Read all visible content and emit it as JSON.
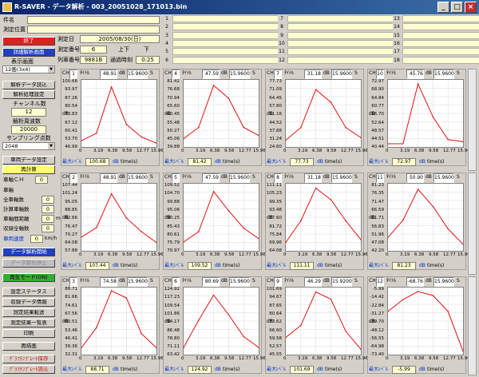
{
  "window": {
    "title": "R-SAVER - データ解析 - 003_20051028_171013.bin",
    "min_label": "_",
    "max_label": "□",
    "close_label": "×"
  },
  "header": {
    "name_label": "件名",
    "location_label": "測定位置",
    "date_label": "測定日",
    "date_value": "2005/08/30(日)",
    "meas_no_label": "測定番号",
    "meas_no_value": "6",
    "updown_label": "上下",
    "down_label": "下",
    "train_no_label": "列車番号",
    "train_no_value": "9881B",
    "passtime_label": "通過時刻",
    "passtime_value": "0:25",
    "channels": [
      "1",
      "2",
      "3",
      "4",
      "5",
      "6",
      "7",
      "8",
      "9",
      "10",
      "11",
      "12",
      "13",
      "14",
      "15",
      "16",
      "17",
      "18"
    ]
  },
  "sidebar": {
    "end_btn": "終了",
    "detail_btn": "詳細解析画面",
    "display_label": "表示画面",
    "display_value": "12画(3x4)",
    "read_btn": "解析データ読込",
    "settings_btn": "解析処理設定",
    "ch_count_label": "チャンネル数",
    "ch_count_value": "12",
    "freq_label": "解析周波数",
    "freq_value": "20000",
    "sampling_label": "サンプリング点数",
    "sampling_value": "2048",
    "vehicle_settings_btn": "車両データ設定",
    "recalc_btn": "再計算",
    "vehicle_ch_label": "車軸ＣＨ",
    "vehicle_ch_value": "0",
    "axle_label": "車軸",
    "total_axles_label": "全車軸数",
    "total_axles_value": "0",
    "calc_axles_label": "計算車軸数",
    "calc_axles_value": "0",
    "distance_label": "車軸間距離",
    "distance_value": "0",
    "distance_unit": "m",
    "recorded_label": "収録全軸数",
    "recorded_value": "0",
    "speed_label": "車両速度",
    "speed_value": "0",
    "speed_unit": "km/h",
    "analysis_start_btn": "データ解析開始",
    "analysis_stop_btn": "データ解析停止",
    "playback_btn": "再生モード(ON)",
    "status_btn": "設定ステータス",
    "record_info_btn": "収録データ情報",
    "result_transfer_btn": "測定結果転送",
    "result_list_btn": "測定結果一覧表",
    "print_btn": "印刷",
    "redraw_btn": "再描画",
    "graph_save_btn": "ｸﾞﾗﾌﾃﾝﾌﾟﾚｰﾄ保存",
    "graph_load_btn": "ｸﾞﾗﾌﾃﾝﾌﾟﾚｰﾄ読込"
  },
  "panels": [
    {
      "ch": "1",
      "channel_name": "ﾀｲﾄﾙ",
      "db": "48.91",
      "sec": "15.9600",
      "unit": "S",
      "max_label": "最大ﾚﾍﾞﾙ",
      "max": "100.68",
      "xlabel": "time(s)",
      "ylabel": "dB",
      "yticks": [
        "100.68",
        "93.97",
        "87.26",
        "80.54",
        "73.83",
        "67.12",
        "60.41",
        "53.70",
        "46.99"
      ],
      "xticks": [
        "0",
        "3.19",
        "6.38",
        "9.58",
        "12.77",
        "15.96"
      ]
    },
    {
      "ch": "4",
      "channel_name": "ﾀｲﾄﾙ",
      "db": "47.59",
      "sec": "15.9600",
      "unit": "S",
      "max_label": "最大ﾚﾍﾞﾙ",
      "max": "81.42",
      "xlabel": "time(s)",
      "ylabel": "dB",
      "yticks": [
        "81.42",
        "76.68",
        "70.94",
        "65.60",
        "60.45",
        "55.48",
        "50.27",
        "45.06",
        "39.88"
      ],
      "xticks": [
        "0",
        "3.19",
        "6.38",
        "9.58",
        "12.77",
        "15.96"
      ]
    },
    {
      "ch": "7",
      "channel_name": "ﾀｲﾄﾙ",
      "db": "31.18",
      "sec": "15.9600",
      "unit": "S",
      "max_label": "最大ﾚﾍﾞﾙ",
      "max": "77.73",
      "xlabel": "time(s)",
      "ylabel": "dB",
      "yticks": [
        "77.73",
        "71.09",
        "64.45",
        "57.80",
        "51.16",
        "44.52",
        "37.88",
        "31.24",
        "24.60"
      ],
      "xticks": [
        "0",
        "3.19",
        "6.38",
        "9.58",
        "12.77",
        "15.96"
      ]
    },
    {
      "ch": "10",
      "channel_name": "ﾀｲﾄﾙ",
      "db": "45.76",
      "sec": "15.9600",
      "unit": "S",
      "max_label": "最大ﾚﾍﾞﾙ",
      "max": "72.97",
      "xlabel": "time(s)",
      "ylabel": "dB",
      "yticks": [
        "72.97",
        "68.90",
        "64.84",
        "60.77",
        "56.70",
        "52.64",
        "48.57",
        "44.51",
        "40.44"
      ],
      "xticks": [
        "0",
        "3.19",
        "6.38",
        "9.58",
        "12.77",
        "15.96"
      ]
    },
    {
      "ch": "2",
      "channel_name": "ﾀｲﾄﾙ",
      "db": "48.91",
      "sec": "15.9600",
      "unit": "S",
      "max_label": "最大ﾚﾍﾞﾙ",
      "max": "107.44",
      "xlabel": "time(s)",
      "ylabel": "dB",
      "yticks": [
        "107.44",
        "101.24",
        "95.05",
        "88.85",
        "82.66",
        "76.47",
        "70.27",
        "64.08",
        "57.88"
      ],
      "xticks": [
        "0",
        "3.19",
        "6.38",
        "9.58",
        "12.77",
        "15.96"
      ]
    },
    {
      "ch": "5",
      "channel_name": "ﾀｲﾄﾙ",
      "db": "47.59",
      "sec": "15.9600",
      "unit": "S",
      "max_label": "最大ﾚﾍﾞﾙ",
      "max": "109.52",
      "xlabel": "time(s)",
      "ylabel": "dB",
      "yticks": [
        "109.52",
        "104.70",
        "99.88",
        "95.06",
        "90.25",
        "85.43",
        "80.61",
        "75.79",
        "70.97"
      ],
      "xticks": [
        "0",
        "3.19",
        "6.38",
        "9.58",
        "12.77",
        "15.96"
      ]
    },
    {
      "ch": "8",
      "channel_name": "ﾀｲﾄﾙ",
      "db": "31.18",
      "sec": "15.9600",
      "unit": "S",
      "max_label": "最大ﾚﾍﾞﾙ",
      "max": "111.11",
      "xlabel": "time(s)",
      "ylabel": "dB",
      "yticks": [
        "111.11",
        "105.23",
        "99.35",
        "93.48",
        "87.60",
        "81.72",
        "75.84",
        "69.96",
        "64.08"
      ],
      "xticks": [
        "0",
        "3.19",
        "6.38",
        "9.58",
        "12.77",
        "15.96"
      ]
    },
    {
      "ch": "11",
      "channel_name": "ﾀｲﾄﾙ",
      "db": "50.90",
      "sec": "15.9600",
      "unit": "S",
      "max_label": "最大ﾚﾍﾞﾙ",
      "max": "81.23",
      "xlabel": "time(s)",
      "ylabel": "dB",
      "yticks": [
        "81.23",
        "76.35",
        "71.47",
        "66.59",
        "61.71",
        "56.83",
        "51.96",
        "47.08",
        "42.20"
      ],
      "xticks": [
        "0",
        "3.19",
        "6.38",
        "9.58",
        "12.77",
        "15.96"
      ]
    },
    {
      "ch": "3",
      "channel_name": "ﾀｲﾄﾙ",
      "db": "74.58",
      "sec": "15.9600",
      "unit": "S",
      "max_label": "最大ﾚﾍﾞﾙ",
      "max": "88.71",
      "xlabel": "time(s)",
      "ylabel": "dB",
      "yticks": [
        "88.71",
        "81.66",
        "74.61",
        "67.56",
        "60.51",
        "53.46",
        "46.41",
        "39.36",
        "32.31"
      ],
      "xticks": [
        "0",
        "3.19",
        "6.38",
        "9.58",
        "12.77",
        "15.96"
      ]
    },
    {
      "ch": "6",
      "channel_name": "ﾀｲﾄﾙ",
      "db": "80.69",
      "sec": "15.9600",
      "unit": "S",
      "max_label": "最大ﾚﾍﾞﾙ",
      "max": "124.92",
      "xlabel": "time(s)",
      "ylabel": "dB",
      "yticks": [
        "124.92",
        "117.23",
        "109.54",
        "101.86",
        "94.17",
        "86.48",
        "78.80",
        "71.11",
        "63.42"
      ],
      "xticks": [
        "0",
        "3.19",
        "6.38",
        "9.58",
        "12.77",
        "15.96"
      ]
    },
    {
      "ch": "9",
      "channel_name": "ﾀｲﾄﾙ",
      "db": "46.29",
      "sec": "15.9200",
      "unit": "S",
      "max_label": "最大ﾚﾍﾞﾙ",
      "max": "101.69",
      "xlabel": "time(s)",
      "ylabel": "dB",
      "yticks": [
        "101.69",
        "94.67",
        "87.65",
        "80.64",
        "73.62",
        "66.60",
        "59.58",
        "52.57",
        "45.55"
      ],
      "xticks": [
        "0",
        "3.19",
        "6.38",
        "9.58",
        "12.77",
        "15.96"
      ]
    },
    {
      "ch": "12",
      "channel_name": "ﾀｲﾄﾙ",
      "db": "-68.76",
      "sec": "15.9600",
      "unit": "S",
      "max_label": "最大ﾚﾍﾞﾙ",
      "max": "-5.99",
      "xlabel": "time(s)",
      "ylabel": "dB",
      "yticks": [
        "-5.99",
        "-14.42",
        "-22.84",
        "-31.27",
        "-39.70",
        "-48.12",
        "-56.55",
        "-64.98",
        "-73.40"
      ],
      "xticks": [
        "0",
        "3.19",
        "6.38",
        "9.58",
        "12.77",
        "15.96"
      ]
    }
  ],
  "chart_data": [
    {
      "type": "line",
      "ch": "1",
      "x": [
        0,
        3.19,
        6.38,
        9.58,
        12.77,
        15.96
      ],
      "xlabel": "time(s)",
      "ylabel": "dB",
      "ylim": [
        46.99,
        100.68
      ],
      "series": [
        {
          "values": [
            52,
            58,
            95,
            65,
            55,
            50
          ]
        }
      ]
    },
    {
      "type": "line",
      "ch": "4",
      "x": [
        0,
        3.19,
        6.38,
        9.58,
        12.77,
        15.96
      ],
      "xlabel": "time(s)",
      "ylabel": "dB",
      "ylim": [
        39.88,
        81.42
      ],
      "series": [
        {
          "values": [
            45,
            52,
            78,
            70,
            52,
            47
          ]
        }
      ]
    },
    {
      "type": "line",
      "ch": "7",
      "x": [
        0,
        3.19,
        6.38,
        9.58,
        12.77,
        15.96
      ],
      "xlabel": "time(s)",
      "ylabel": "dB",
      "ylim": [
        24.6,
        77.73
      ],
      "series": [
        {
          "values": [
            30,
            40,
            70,
            60,
            40,
            32
          ]
        }
      ]
    },
    {
      "type": "line",
      "ch": "10",
      "x": [
        0,
        3.19,
        6.38,
        9.58,
        12.77,
        15.96
      ],
      "xlabel": "time(s)",
      "ylabel": "dB",
      "ylim": [
        40.44,
        72.97
      ],
      "series": [
        {
          "values": [
            42,
            42,
            71,
            55,
            44,
            43
          ]
        }
      ]
    },
    {
      "type": "line",
      "ch": "2",
      "x": [
        0,
        3.19,
        6.38,
        9.58,
        12.77,
        15.96
      ],
      "xlabel": "time(s)",
      "ylabel": "dB",
      "ylim": [
        57.88,
        107.44
      ],
      "series": [
        {
          "values": [
            68,
            75,
            100,
            82,
            72,
            64
          ]
        }
      ]
    },
    {
      "type": "line",
      "ch": "5",
      "x": [
        0,
        3.19,
        6.38,
        9.58,
        12.77,
        15.96
      ],
      "xlabel": "time(s)",
      "ylabel": "dB",
      "ylim": [
        70.97,
        109.52
      ],
      "series": [
        {
          "values": [
            76,
            82,
            105,
            94,
            84,
            78
          ]
        }
      ]
    },
    {
      "type": "line",
      "ch": "8",
      "x": [
        0,
        3.19,
        6.38,
        9.58,
        12.77,
        15.96
      ],
      "xlabel": "time(s)",
      "ylabel": "dB",
      "ylim": [
        64.08,
        111.11
      ],
      "series": [
        {
          "values": [
            70,
            85,
            108,
            100,
            85,
            72
          ]
        }
      ]
    },
    {
      "type": "line",
      "ch": "11",
      "x": [
        0,
        3.19,
        6.38,
        9.58,
        12.77,
        15.96
      ],
      "xlabel": "time(s)",
      "ylabel": "dB",
      "ylim": [
        42.2,
        81.23
      ],
      "series": [
        {
          "values": [
            50,
            60,
            78,
            68,
            55,
            46
          ]
        }
      ]
    },
    {
      "type": "line",
      "ch": "3",
      "x": [
        0,
        3.19,
        6.38,
        9.58,
        12.77,
        15.96
      ],
      "xlabel": "time(s)",
      "ylabel": "dB",
      "ylim": [
        32.31,
        88.71
      ],
      "series": [
        {
          "values": [
            38,
            55,
            86,
            80,
            50,
            38
          ]
        }
      ]
    },
    {
      "type": "line",
      "ch": "6",
      "x": [
        0,
        3.19,
        6.38,
        9.58,
        12.77,
        15.96
      ],
      "xlabel": "time(s)",
      "ylabel": "dB",
      "ylim": [
        63.42,
        124.92
      ],
      "series": [
        {
          "values": [
            70,
            95,
            118,
            100,
            80,
            70
          ]
        }
      ]
    },
    {
      "type": "line",
      "ch": "9",
      "x": [
        0,
        3.19,
        6.38,
        9.58,
        12.77,
        15.96
      ],
      "xlabel": "time(s)",
      "ylabel": "dB",
      "ylim": [
        45.55,
        101.69
      ],
      "series": [
        {
          "values": [
            60,
            70,
            98,
            92,
            65,
            50
          ]
        }
      ]
    },
    {
      "type": "line",
      "ch": "12",
      "x": [
        0,
        3.19,
        6.38,
        9.58,
        12.77,
        15.96
      ],
      "xlabel": "time(s)",
      "ylabel": "dB",
      "ylim": [
        -73.4,
        -5.99
      ],
      "series": [
        {
          "values": [
            -30,
            -18,
            -10,
            -14,
            -30,
            -70
          ]
        }
      ]
    }
  ]
}
